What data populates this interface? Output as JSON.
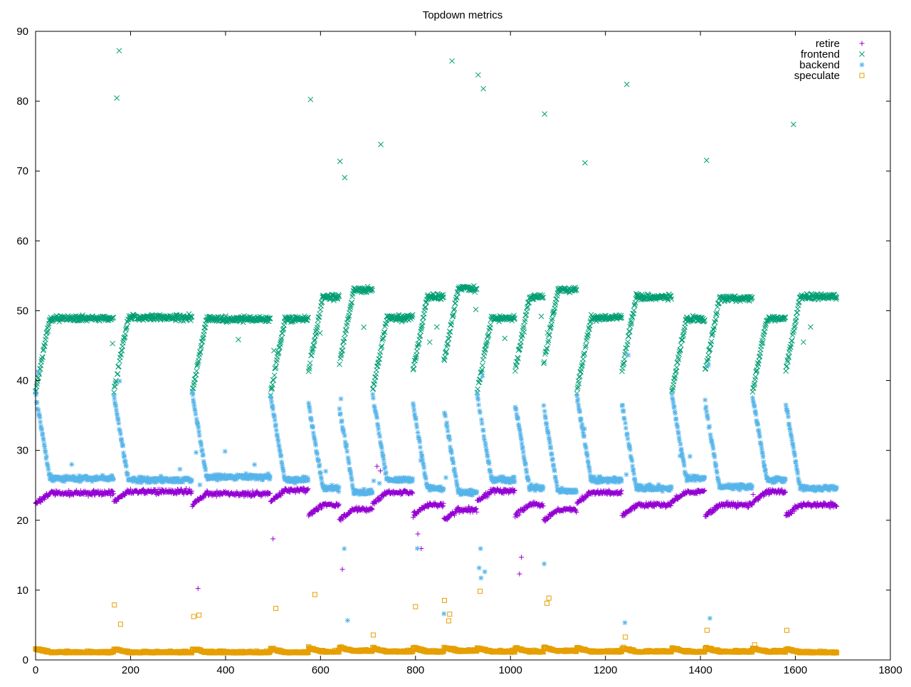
{
  "chart_data": {
    "type": "scatter",
    "title": "Topdown metrics",
    "xlabel": "",
    "ylabel": "",
    "xlim": [
      0,
      1800
    ],
    "ylim": [
      0,
      90
    ],
    "xticks": [
      0,
      200,
      400,
      600,
      800,
      1000,
      1200,
      1400,
      1600,
      1800
    ],
    "yticks": [
      0,
      10,
      20,
      30,
      40,
      50,
      60,
      70,
      80,
      90
    ],
    "grid": false,
    "legend_position": "top-right",
    "points_per_series": 1688,
    "segments": [
      {
        "start": 0,
        "end": 165,
        "frontend": 48.9,
        "backend": 26.0,
        "retire": 23.9,
        "speculate": 1.0
      },
      {
        "start": 165,
        "end": 330,
        "frontend": 49.0,
        "backend": 25.8,
        "retire": 24.1,
        "speculate": 1.0
      },
      {
        "start": 330,
        "end": 495,
        "frontend": 48.8,
        "backend": 26.2,
        "retire": 23.8,
        "speculate": 1.0
      },
      {
        "start": 495,
        "end": 575,
        "frontend": 48.8,
        "backend": 25.8,
        "retire": 24.3,
        "speculate": 1.0
      },
      {
        "start": 575,
        "end": 640,
        "frontend": 52.0,
        "backend": 24.6,
        "retire": 22.2,
        "speculate": 1.1
      },
      {
        "start": 640,
        "end": 710,
        "frontend": 53.0,
        "backend": 24.0,
        "retire": 21.6,
        "speculate": 1.2
      },
      {
        "start": 710,
        "end": 795,
        "frontend": 49.0,
        "backend": 25.8,
        "retire": 24.0,
        "speculate": 1.1
      },
      {
        "start": 795,
        "end": 860,
        "frontend": 52.0,
        "backend": 24.6,
        "retire": 22.2,
        "speculate": 1.1
      },
      {
        "start": 860,
        "end": 930,
        "frontend": 53.2,
        "backend": 24.0,
        "retire": 21.5,
        "speculate": 1.2
      },
      {
        "start": 930,
        "end": 1010,
        "frontend": 48.9,
        "backend": 25.8,
        "retire": 24.2,
        "speculate": 1.1
      },
      {
        "start": 1010,
        "end": 1070,
        "frontend": 52.0,
        "backend": 24.6,
        "retire": 22.2,
        "speculate": 1.1
      },
      {
        "start": 1070,
        "end": 1140,
        "frontend": 53.0,
        "backend": 24.2,
        "retire": 21.5,
        "speculate": 1.2
      },
      {
        "start": 1140,
        "end": 1235,
        "frontend": 49.0,
        "backend": 25.8,
        "retire": 24.0,
        "speculate": 1.1
      },
      {
        "start": 1235,
        "end": 1340,
        "frontend": 52.0,
        "backend": 24.6,
        "retire": 22.2,
        "speculate": 1.1
      },
      {
        "start": 1340,
        "end": 1410,
        "frontend": 48.8,
        "backend": 26.0,
        "retire": 24.1,
        "speculate": 1.1
      },
      {
        "start": 1410,
        "end": 1510,
        "frontend": 51.8,
        "backend": 24.8,
        "retire": 22.2,
        "speculate": 1.1
      },
      {
        "start": 1510,
        "end": 1580,
        "frontend": 48.9,
        "backend": 25.8,
        "retire": 24.1,
        "speculate": 1.1
      },
      {
        "start": 1580,
        "end": 1688,
        "frontend": 52.0,
        "backend": 24.6,
        "retire": 22.2,
        "speculate": 1.0
      }
    ],
    "series": [
      {
        "name": "retire",
        "color": "#9400d3",
        "marker": "plus"
      },
      {
        "name": "frontend",
        "color": "#009e73",
        "marker": "cross"
      },
      {
        "name": "backend",
        "color": "#56b4e9",
        "marker": "asterisk"
      },
      {
        "name": "speculate",
        "color": "#e69f00",
        "marker": "square"
      }
    ]
  }
}
